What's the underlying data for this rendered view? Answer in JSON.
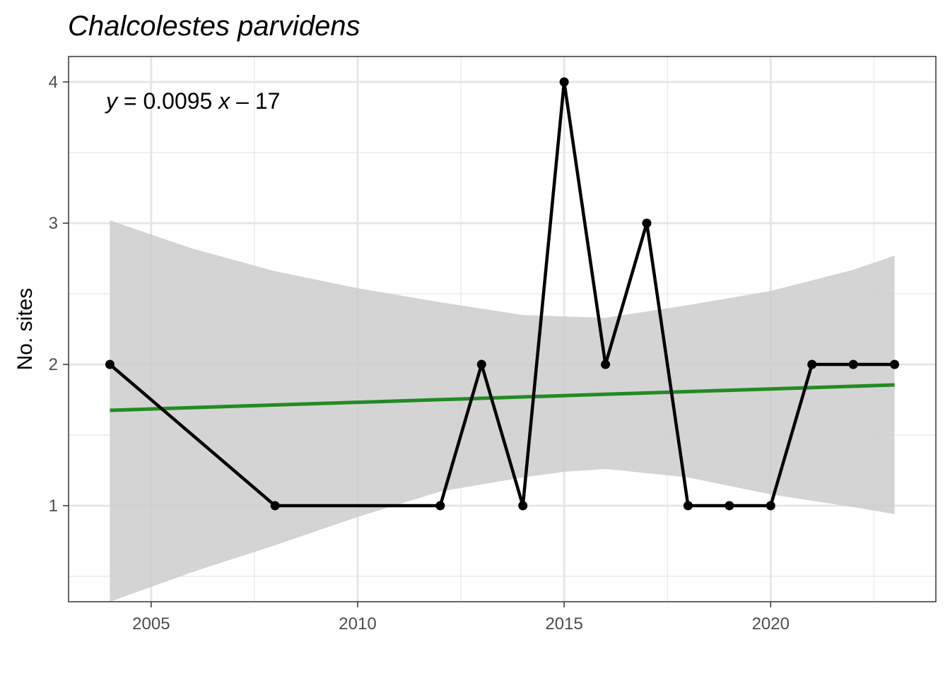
{
  "chart_data": {
    "type": "line",
    "title": "Chalcolestes parvidens",
    "xlabel": "",
    "ylabel": "No. sites",
    "xlim": [
      2003.0,
      2024.0
    ],
    "ylim": [
      0.32,
      4.18
    ],
    "x_ticks": [
      2005,
      2010,
      2015,
      2020
    ],
    "x_tick_labels": [
      "2005",
      "2010",
      "2015",
      "2020"
    ],
    "x_minor_ticks": [
      2007.5,
      2012.5,
      2017.5,
      2022.5
    ],
    "y_ticks": [
      1,
      2,
      3,
      4
    ],
    "y_tick_labels": [
      "1",
      "2",
      "3",
      "4"
    ],
    "y_minor_ticks": [
      0.5,
      1.5,
      2.5,
      3.5
    ],
    "grid": true,
    "annotation": {
      "var_y": "y",
      "middle": " = 0.0095 ",
      "var_x": "x",
      "end": " – 17"
    },
    "series": [
      {
        "x": [
          2004,
          2008,
          2012,
          2013,
          2014,
          2015,
          2016,
          2017,
          2018,
          2019,
          2020,
          2021,
          2022,
          2023
        ],
        "values": [
          2,
          1,
          1,
          2,
          1,
          4,
          2,
          3,
          1,
          1,
          1,
          2,
          2,
          2
        ],
        "color": "#000000"
      }
    ],
    "trend": {
      "x": [
        2004,
        2023
      ],
      "values": [
        1.675,
        1.855
      ],
      "color": "#228B22"
    },
    "confidence_band": {
      "x": [
        2004,
        2006,
        2008,
        2010,
        2012,
        2014,
        2015,
        2016,
        2018,
        2020,
        2022,
        2023
      ],
      "upper": [
        3.02,
        2.82,
        2.66,
        2.54,
        2.44,
        2.35,
        2.34,
        2.33,
        2.42,
        2.52,
        2.67,
        2.77
      ],
      "lower": [
        0.32,
        0.53,
        0.72,
        0.92,
        1.1,
        1.2,
        1.24,
        1.26,
        1.2,
        1.08,
        0.99,
        0.94
      ],
      "color": "#cccccc"
    }
  }
}
